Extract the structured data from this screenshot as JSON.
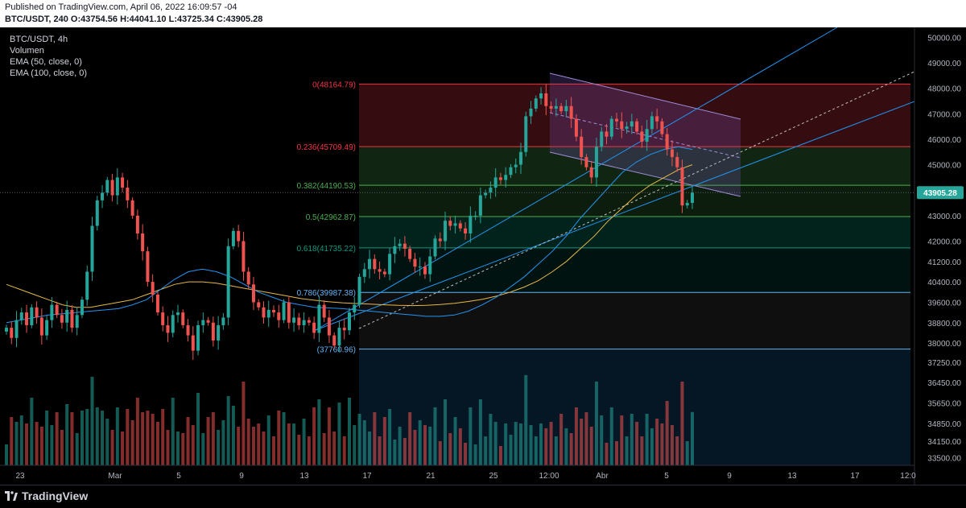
{
  "header": {
    "published": "Published on TradingView.com, April 06, 2022 16:09:57 -04",
    "ohlc": "BTC/USDT, 240 O:43754.56 H:44041.10 L:43725.34 C:43905.28"
  },
  "legend": {
    "symbol": "BTC/USDT, 4h",
    "volume": "Volumen",
    "ema50": "EMA (50, close, 0)",
    "ema100": "EMA (100, close, 0)"
  },
  "footer": {
    "brand": "TradingView"
  },
  "colors": {
    "up": "#26a69a",
    "down": "#ef5350",
    "ema50": "#2196f3",
    "ema100": "#e6b94a",
    "fib_red": "#f23645",
    "fib_green": "#4caf50",
    "fib_teal": "#089981",
    "fib_blue": "#2962ff"
  },
  "chart_data": {
    "type": "candlestick",
    "symbol": "BTC/USDT",
    "interval": "4h",
    "last_price": 43905.28,
    "last_price_label": "43905.28",
    "ylim": [
      33200,
      50200
    ],
    "y_ticks": [
      {
        "v": 50000,
        "label": "50000.00"
      },
      {
        "v": 49000,
        "label": "49000.00"
      },
      {
        "v": 48000,
        "label": "48000.00"
      },
      {
        "v": 47000,
        "label": "47000.00"
      },
      {
        "v": 46000,
        "label": "46000.00"
      },
      {
        "v": 45000,
        "label": "45000.00"
      },
      {
        "v": 43000,
        "label": "43000.00"
      },
      {
        "v": 42000,
        "label": "42000.00"
      },
      {
        "v": 41200,
        "label": "41200.00"
      },
      {
        "v": 40400,
        "label": "40400.00"
      },
      {
        "v": 39600,
        "label": "39600.00"
      },
      {
        "v": 38800,
        "label": "38800.00"
      },
      {
        "v": 38000,
        "label": "38000.00"
      },
      {
        "v": 37250,
        "label": "37250.00"
      },
      {
        "v": 36450,
        "label": "36450.00"
      },
      {
        "v": 35650,
        "label": "35650.00"
      },
      {
        "v": 34850,
        "label": "34850.00"
      },
      {
        "v": 34150,
        "label": "34150.00"
      },
      {
        "v": 33500,
        "label": "33500.00"
      }
    ],
    "x_ticks": [
      "23",
      "Mar",
      "5",
      "9",
      "13",
      "17",
      "21",
      "25",
      "12:00",
      "Abr",
      "5",
      "9",
      "13",
      "17",
      "12:0"
    ],
    "fib_levels": [
      {
        "ratio": 0,
        "price": 48164.79,
        "label": "0(48164.79)"
      },
      {
        "ratio": 0.236,
        "price": 45709.49,
        "label": "0.236(45709.49)"
      },
      {
        "ratio": 0.382,
        "price": 44190.53,
        "label": "0.382(44190.53)"
      },
      {
        "ratio": 0.5,
        "price": 42962.87,
        "label": "0.5(42962.87)"
      },
      {
        "ratio": 0.618,
        "price": 41735.22,
        "label": "0.618(41735.22)"
      },
      {
        "ratio": 0.786,
        "price": 39987.38,
        "label": "0.786(39987.38)"
      },
      {
        "ratio": 1,
        "price": 37760.96,
        "label": "(37760.96)"
      }
    ],
    "closes": [
      38600,
      38200,
      38900,
      39200,
      38700,
      39400,
      39000,
      38300,
      38900,
      39500,
      39100,
      38800,
      39300,
      38600,
      39100,
      39700,
      40800,
      42600,
      43600,
      43900,
      44400,
      43800,
      44500,
      44100,
      43600,
      43000,
      42300,
      41600,
      40400,
      39900,
      39200,
      38700,
      38400,
      39100,
      39200,
      38700,
      38300,
      37700,
      38700,
      38900,
      38800,
      38100,
      38700,
      39000,
      41800,
      42400,
      42000,
      40800,
      40300,
      39600,
      39400,
      39000,
      39300,
      39200,
      38900,
      39600,
      38800,
      39000,
      38700,
      38900,
      38800,
      38400,
      39500,
      39000,
      38300,
      37900,
      38600,
      38500,
      39200,
      39500,
      40600,
      40900,
      41300,
      40900,
      40800,
      40700,
      41500,
      41800,
      41900,
      41700,
      41300,
      41000,
      41000,
      40700,
      41400,
      42100,
      42000,
      42800,
      42600,
      42700,
      42500,
      42300,
      43000,
      43000,
      43800,
      43900,
      44100,
      44500,
      44400,
      44600,
      44900,
      45000,
      45500,
      46900,
      47200,
      47600,
      47800,
      47300,
      47200,
      47300,
      47100,
      47300,
      46800,
      46100,
      45300,
      44900,
      44500,
      45700,
      46300,
      46100,
      46800,
      46700,
      46400,
      46500,
      46700,
      46300,
      45900,
      46400,
      46900,
      46700,
      46200,
      45600,
      45300,
      44900,
      43400,
      43500,
      43905
    ],
    "ema50": [
      38800,
      38900,
      39000,
      39100,
      39150,
      39200,
      39250,
      39300,
      39350,
      39500,
      39700,
      40100,
      40500,
      40800,
      40900,
      40800,
      40600,
      40300,
      40000,
      39800,
      39600,
      39500,
      39400,
      39380,
      39350,
      39300,
      39250,
      39200,
      39150,
      39100,
      39050,
      39050,
      39100,
      39250,
      39500,
      39800,
      40200,
      40600,
      41100,
      41600,
      42200,
      42900,
      43500,
      44100,
      44700,
      45100,
      45400,
      45600,
      45700,
      45600
    ],
    "ema100": [
      40300,
      40100,
      39900,
      39700,
      39500,
      39400,
      39400,
      39500,
      39600,
      39700,
      39900,
      40100,
      40300,
      40400,
      40400,
      40350,
      40250,
      40150,
      40050,
      39950,
      39850,
      39750,
      39680,
      39620,
      39580,
      39550,
      39530,
      39500,
      39480,
      39470,
      39480,
      39510,
      39560,
      39630,
      39720,
      39840,
      40000,
      40200,
      40450,
      40800,
      41200,
      41700,
      42200,
      42800,
      43300,
      43800,
      44200,
      44500,
      44800,
      45000
    ]
  }
}
